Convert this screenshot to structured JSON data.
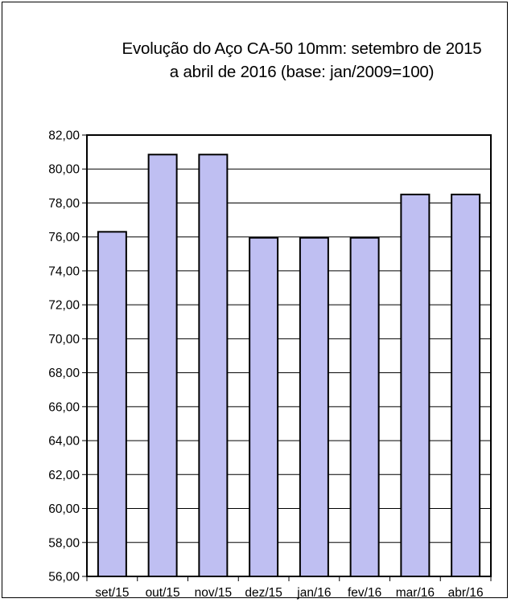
{
  "chart_data": {
    "type": "bar",
    "title_lines": [
      "Evolução  do Aço CA-50 10mm: setembro de 2015",
      "a abril de 2016 (base: jan/2009=100)"
    ],
    "categories": [
      "set/15",
      "out/15",
      "nov/15",
      "dez/15",
      "jan/16",
      "fev/16",
      "mar/16",
      "abr/16"
    ],
    "values": [
      76.3,
      80.85,
      80.85,
      75.95,
      75.95,
      75.95,
      78.5,
      78.5
    ],
    "ylim": [
      56,
      82
    ],
    "ytick_labels": [
      "56,00",
      "58,00",
      "60,00",
      "62,00",
      "64,00",
      "66,00",
      "68,00",
      "70,00",
      "72,00",
      "74,00",
      "76,00",
      "78,00",
      "80,00",
      "82,00"
    ],
    "grid": true,
    "bar_color": "#bfbff2",
    "bar_edge_color": "#000000"
  }
}
